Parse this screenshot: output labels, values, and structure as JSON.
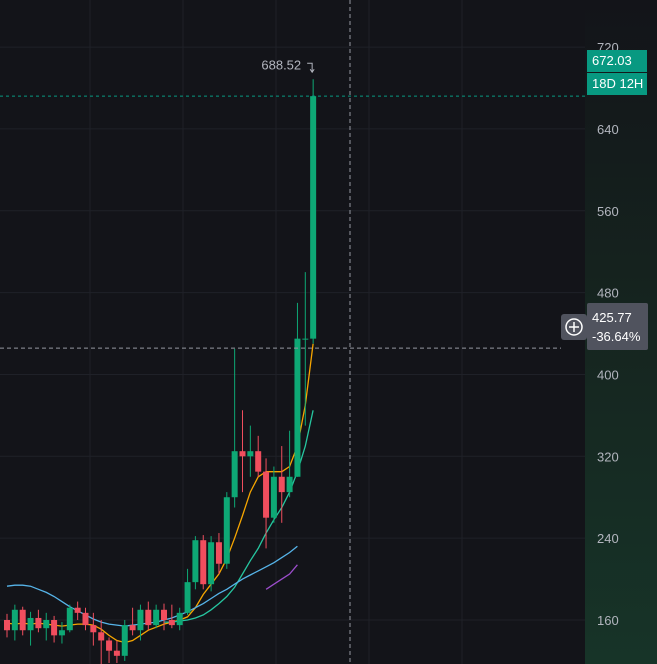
{
  "chart_data": {
    "type": "candlestick",
    "y_axis": {
      "ticks": [
        160,
        240,
        320,
        400,
        480,
        560,
        640,
        720
      ],
      "range": [
        117,
        766
      ],
      "side": "right"
    },
    "candles": [
      {
        "o": 160,
        "h": 166,
        "l": 143,
        "c": 150
      },
      {
        "o": 150,
        "h": 175,
        "l": 140,
        "c": 170
      },
      {
        "o": 170,
        "h": 173,
        "l": 145,
        "c": 150
      },
      {
        "o": 150,
        "h": 168,
        "l": 135,
        "c": 162
      },
      {
        "o": 162,
        "h": 170,
        "l": 148,
        "c": 152
      },
      {
        "o": 152,
        "h": 167,
        "l": 140,
        "c": 160
      },
      {
        "o": 160,
        "h": 164,
        "l": 138,
        "c": 145
      },
      {
        "o": 145,
        "h": 158,
        "l": 137,
        "c": 150
      },
      {
        "o": 150,
        "h": 175,
        "l": 148,
        "c": 172
      },
      {
        "o": 172,
        "h": 178,
        "l": 160,
        "c": 167
      },
      {
        "o": 167,
        "h": 172,
        "l": 150,
        "c": 155
      },
      {
        "o": 155,
        "h": 167,
        "l": 135,
        "c": 148
      },
      {
        "o": 148,
        "h": 160,
        "l": 115,
        "c": 140
      },
      {
        "o": 140,
        "h": 143,
        "l": 118,
        "c": 130
      },
      {
        "o": 130,
        "h": 140,
        "l": 118,
        "c": 125
      },
      {
        "o": 125,
        "h": 160,
        "l": 120,
        "c": 155
      },
      {
        "o": 155,
        "h": 172,
        "l": 145,
        "c": 150
      },
      {
        "o": 150,
        "h": 175,
        "l": 140,
        "c": 170
      },
      {
        "o": 170,
        "h": 178,
        "l": 150,
        "c": 155
      },
      {
        "o": 155,
        "h": 175,
        "l": 152,
        "c": 170
      },
      {
        "o": 170,
        "h": 176,
        "l": 150,
        "c": 160
      },
      {
        "o": 160,
        "h": 175,
        "l": 152,
        "c": 155
      },
      {
        "o": 155,
        "h": 172,
        "l": 150,
        "c": 167
      },
      {
        "o": 167,
        "h": 210,
        "l": 165,
        "c": 197
      },
      {
        "o": 197,
        "h": 242,
        "l": 190,
        "c": 238
      },
      {
        "o": 238,
        "h": 243,
        "l": 190,
        "c": 195
      },
      {
        "o": 195,
        "h": 242,
        "l": 188,
        "c": 236
      },
      {
        "o": 236,
        "h": 245,
        "l": 205,
        "c": 215
      },
      {
        "o": 215,
        "h": 285,
        "l": 210,
        "c": 280
      },
      {
        "o": 280,
        "h": 425,
        "l": 270,
        "c": 325
      },
      {
        "o": 325,
        "h": 365,
        "l": 285,
        "c": 320
      },
      {
        "o": 320,
        "h": 350,
        "l": 300,
        "c": 325
      },
      {
        "o": 325,
        "h": 340,
        "l": 300,
        "c": 305
      },
      {
        "o": 305,
        "h": 318,
        "l": 230,
        "c": 260
      },
      {
        "o": 260,
        "h": 310,
        "l": 255,
        "c": 300
      },
      {
        "o": 300,
        "h": 330,
        "l": 255,
        "c": 285
      },
      {
        "o": 285,
        "h": 345,
        "l": 280,
        "c": 300
      },
      {
        "o": 300,
        "h": 470,
        "l": 300,
        "c": 435
      },
      {
        "o": 435,
        "h": 500,
        "l": 350,
        "c": 435
      },
      {
        "o": 435,
        "h": 688.52,
        "l": 430,
        "c": 672.03
      }
    ],
    "ma_lines": [
      {
        "color": "#f7a600",
        "values": [
          157,
          156,
          157,
          156,
          157,
          156,
          155,
          154,
          155,
          156,
          156,
          155,
          151,
          145,
          140,
          138,
          140,
          145,
          150,
          153,
          156,
          158,
          160,
          163,
          172,
          185,
          195,
          205,
          220,
          240,
          262,
          285,
          300,
          305,
          305,
          305,
          310,
          330,
          370,
          430
        ]
      },
      {
        "color": "#26c6a0",
        "values": [
          null,
          null,
          null,
          null,
          null,
          null,
          null,
          null,
          null,
          null,
          null,
          null,
          null,
          null,
          null,
          null,
          null,
          null,
          null,
          null,
          158,
          158,
          159,
          160,
          162,
          165,
          170,
          176,
          183,
          192,
          205,
          218,
          230,
          245,
          258,
          270,
          285,
          305,
          330,
          365
        ]
      },
      {
        "color": "#56b4e9",
        "values": [
          193,
          194,
          194,
          193,
          190,
          187,
          183,
          178,
          173,
          169,
          165,
          161,
          158,
          156,
          155,
          154,
          155,
          156,
          157,
          158,
          160,
          162,
          165,
          168,
          172,
          176,
          181,
          186,
          190,
          195,
          200,
          204,
          208,
          212,
          216,
          221,
          226,
          232
        ]
      },
      {
        "color": "#9c4dcc",
        "values": [
          null,
          null,
          null,
          null,
          null,
          null,
          null,
          null,
          null,
          null,
          null,
          null,
          null,
          null,
          null,
          null,
          null,
          null,
          null,
          null,
          null,
          null,
          null,
          null,
          null,
          null,
          null,
          null,
          null,
          null,
          null,
          null,
          null,
          190,
          195,
          200,
          205,
          214
        ]
      }
    ],
    "high_label": "688.52",
    "last_price": {
      "value": "672.03",
      "countdown": "18D 12H"
    },
    "cursor": {
      "price": "425.77",
      "change": "-36.64%"
    }
  }
}
